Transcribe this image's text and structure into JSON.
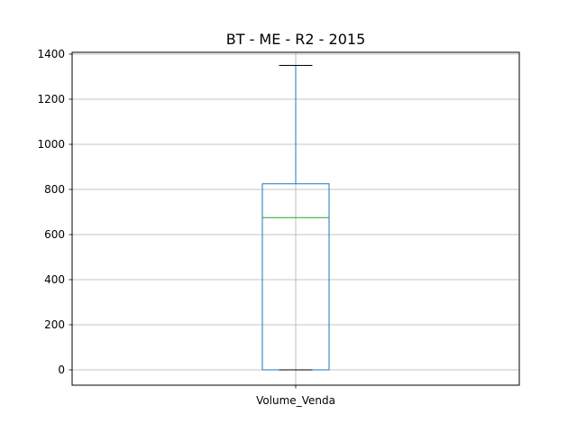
{
  "chart_data": {
    "type": "box",
    "title": "BT - ME - R2 - 2015",
    "xlabel": "",
    "ylabel": "",
    "categories": [
      "Volume_Venda"
    ],
    "boxes": [
      {
        "name": "Volume_Venda",
        "whisker_low": 0,
        "q1": 0,
        "median": 675,
        "q3": 825,
        "whisker_high": 1350
      }
    ],
    "ylim": [
      -68,
      1408
    ],
    "yticks": [
      0,
      200,
      400,
      600,
      800,
      1000,
      1200,
      1400
    ],
    "grid": true,
    "colors": {
      "box": "#1f77b4",
      "median": "#2ca02c",
      "cap": "#000000",
      "grid": "#b0b0b0"
    }
  }
}
